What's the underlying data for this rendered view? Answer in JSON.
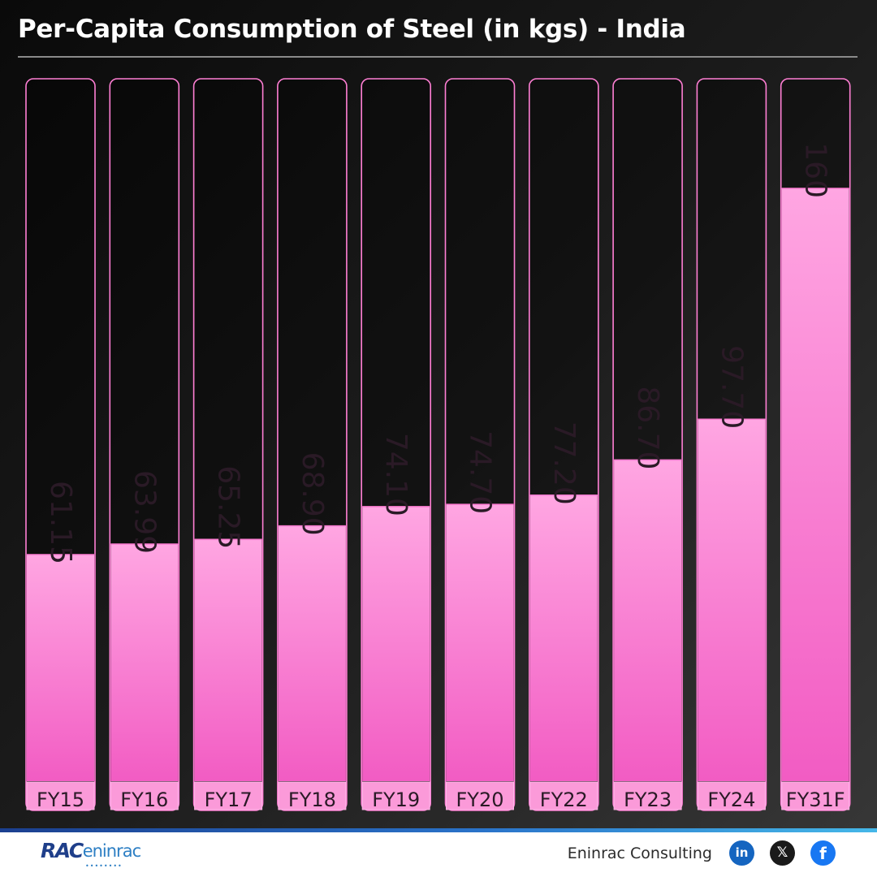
{
  "title": "Per-Capita Consumption of Steel (in kgs) - India",
  "chart_data": {
    "type": "bar",
    "orientation": "vertical",
    "categories": [
      "FY15",
      "FY16",
      "FY17",
      "FY18",
      "FY19",
      "FY20",
      "FY22",
      "FY23",
      "FY24",
      "FY31F"
    ],
    "values": [
      61.15,
      63.99,
      65.25,
      68.9,
      74.1,
      74.7,
      77.2,
      86.7,
      97.7,
      160
    ],
    "value_labels": [
      "61.15",
      "63.99",
      "65.25",
      "68.90",
      "74.10",
      "74.70",
      "77.20",
      "86.70",
      "97.70",
      "160"
    ],
    "title": "Per-Capita Consumption of Steel (in kgs) - India",
    "xlabel": "",
    "ylabel": "",
    "grid": false,
    "bar_color": "#f780d0",
    "bar_outline_color": "#ff7fd4"
  },
  "footer": {
    "logo_mark": "RAC",
    "logo_word": "eninrac",
    "logo_dots": "••••••••",
    "company": "Eninrac Consulting",
    "social": [
      {
        "icon": "linkedin-icon",
        "glyph": "in",
        "color": "#1565c0"
      },
      {
        "icon": "x-icon",
        "glyph": "𝕏",
        "color": "#1a1a1a"
      },
      {
        "icon": "facebook-icon",
        "glyph": "f",
        "color": "#1877f2"
      }
    ]
  }
}
